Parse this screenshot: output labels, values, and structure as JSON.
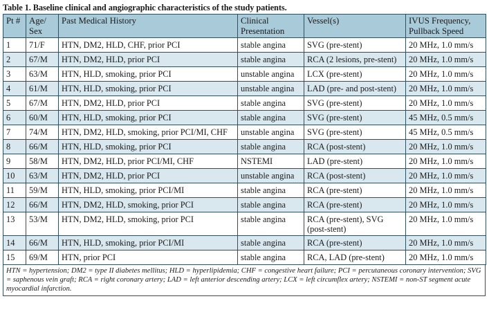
{
  "caption": "Table 1. Baseline clinical and angiographic characteristics of the study patients.",
  "columns": {
    "pt": "Pt #",
    "age": "Age/ Sex",
    "history": "Past Medical History",
    "presentation": "Clinical Presentation",
    "vessel": "Vessel(s)",
    "ivus": "IVUS Frequency, Pullback Speed"
  },
  "rows": [
    {
      "pt": "1",
      "age": "71/F",
      "history": "HTN, DM2, HLD, CHF, prior PCI",
      "presentation": "stable angina",
      "vessel": "SVG (pre-stent)",
      "ivus": "20 MHz, 1.0 mm/s"
    },
    {
      "pt": "2",
      "age": "67/M",
      "history": "HTN, DM2, HLD, prior PCI",
      "presentation": "stable angina",
      "vessel": "RCA (2 lesions, pre-stent)",
      "ivus": "20 MHz, 1.0 mm/s"
    },
    {
      "pt": "3",
      "age": "63/M",
      "history": "HTN, HLD, smoking, prior PCI",
      "presentation": "unstable angina",
      "vessel": "LCX (pre-stent)",
      "ivus": "20 MHz, 1.0 mm/s"
    },
    {
      "pt": "4",
      "age": "61/M",
      "history": "HTN, HLD, smoking, prior PCI",
      "presentation": "unstable angina",
      "vessel": "LAD (pre- and post-stent)",
      "ivus": "20 MHz, 1.0 mm/s"
    },
    {
      "pt": "5",
      "age": "67/M",
      "history": "HTN, DM2, HLD, prior PCI",
      "presentation": "stable angina",
      "vessel": "SVG (pre-stent)",
      "ivus": "20 MHz, 1.0 mm/s"
    },
    {
      "pt": "6",
      "age": "60/M",
      "history": "HTN, HLD, smoking, prior PCI",
      "presentation": "stable angina",
      "vessel": "SVG (pre-stent)",
      "ivus": "45 MHz, 0.5 mm/s"
    },
    {
      "pt": "7",
      "age": "74/M",
      "history": "HTN, DM2, HLD, smoking, prior PCI/MI, CHF",
      "presentation": "unstable angina",
      "vessel": "SVG (pre-stent)",
      "ivus": "45 MHz, 0.5 mm/s"
    },
    {
      "pt": "8",
      "age": "66/M",
      "history": "HTN, HLD, smoking, prior PCI",
      "presentation": "stable angina",
      "vessel": "RCA (post-stent)",
      "ivus": "20 MHz, 1.0 mm/s"
    },
    {
      "pt": "9",
      "age": "58/M",
      "history": "HTN, DM2, HLD, prior PCI/MI, CHF",
      "presentation": "NSTEMI",
      "vessel": "LAD (pre-stent)",
      "ivus": "20 MHz, 1.0 mm/s"
    },
    {
      "pt": "10",
      "age": "63/M",
      "history": "HTN, DM2, HLD, prior PCI",
      "presentation": "unstable angina",
      "vessel": "RCA (post-stent)",
      "ivus": "20 MHz, 1.0 mm/s"
    },
    {
      "pt": "11",
      "age": "59/M",
      "history": "HTN, HLD, smoking, prior PCI/MI",
      "presentation": "stable angina",
      "vessel": "RCA (pre-stent)",
      "ivus": "20 MHz, 1.0 mm/s"
    },
    {
      "pt": "12",
      "age": "66/M",
      "history": "HTN, DM2, HLD, smoking, prior PCI",
      "presentation": "stable angina",
      "vessel": "RCA (pre-stent)",
      "ivus": "20 MHz, 1.0 mm/s"
    },
    {
      "pt": "13",
      "age": "53/M",
      "history": "HTN, DM2, HLD, smoking, prior PCI",
      "presentation": "stable angina",
      "vessel": "RCA (pre-stent), SVG (post-stent)",
      "ivus": "20 MHz, 1.0 mm/s"
    },
    {
      "pt": "14",
      "age": "66/M",
      "history": "HTN, HLD, smoking, prior PCI/MI",
      "presentation": "stable angina",
      "vessel": "RCA (pre-stent)",
      "ivus": "20 MHz, 1.0 mm/s"
    },
    {
      "pt": "15",
      "age": "69/M",
      "history": "HTN, prior PCI",
      "presentation": "stable angina",
      "vessel": "RCA, LAD (pre-stent)",
      "ivus": "20 MHz, 1.0 mm/s"
    }
  ],
  "footnote": "HTN = hypertension; DM2 = type II diabetes mellitus; HLD = hyperlipidemia; CHF = congestive heart failure; PCI = percutaneous coronary intervention; SVG = saphenous vein graft; RCA = right coronary artery; LAD = left anterior descending artery; LCX = left circumflex artery; NSTEMI = non-ST segment acute myocardial infarction."
}
